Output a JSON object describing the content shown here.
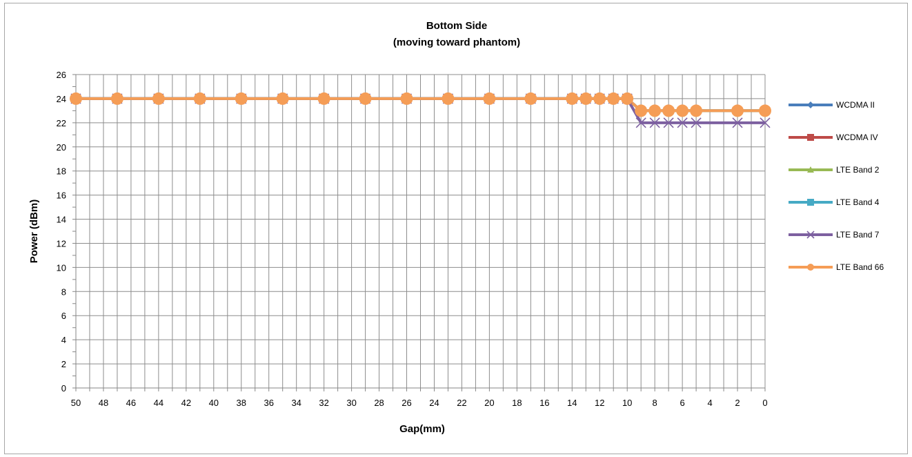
{
  "chart_data": {
    "type": "line",
    "title": "Bottom Side",
    "subtitle": "(moving toward phantom)",
    "xlabel": "Gap(mm)",
    "ylabel": "Power (dBm)",
    "x_reversed": true,
    "xlim": [
      0,
      50
    ],
    "ylim": [
      0,
      26
    ],
    "y_ticks": [
      0,
      2,
      4,
      6,
      8,
      10,
      12,
      14,
      16,
      18,
      20,
      22,
      24,
      26
    ],
    "x_ticks": [
      50,
      48,
      46,
      44,
      42,
      40,
      38,
      36,
      34,
      32,
      30,
      28,
      26,
      24,
      22,
      20,
      18,
      16,
      14,
      12,
      10,
      8,
      6,
      4,
      2,
      0
    ],
    "grid": true,
    "legend_position": "right",
    "x": [
      50,
      47,
      44,
      41,
      38,
      35,
      32,
      29,
      26,
      23,
      20,
      17,
      14,
      13,
      12,
      11,
      10,
      9,
      8,
      7,
      6,
      5,
      2,
      0
    ],
    "series": [
      {
        "name": "WCDMA II",
        "color": "#4a7ebb",
        "marker": "diamond",
        "values": [
          24,
          24,
          24,
          24,
          24,
          24,
          24,
          24,
          24,
          24,
          24,
          24,
          24,
          24,
          24,
          24,
          24,
          23,
          23,
          23,
          23,
          23,
          23,
          23
        ]
      },
      {
        "name": "WCDMA IV",
        "color": "#be4b48",
        "marker": "square",
        "values": [
          24,
          24,
          24,
          24,
          24,
          24,
          24,
          24,
          24,
          24,
          24,
          24,
          24,
          24,
          24,
          24,
          24,
          23,
          23,
          23,
          23,
          23,
          23,
          23
        ]
      },
      {
        "name": "LTE Band 2",
        "color": "#98b954",
        "marker": "triangle",
        "values": [
          24,
          24,
          24,
          24,
          24,
          24,
          24,
          24,
          24,
          24,
          24,
          24,
          24,
          24,
          24,
          24,
          24,
          23,
          23,
          23,
          23,
          23,
          23,
          23
        ]
      },
      {
        "name": "LTE Band 4",
        "color": "#46aac5",
        "marker": "square",
        "values": [
          24,
          24,
          24,
          24,
          24,
          24,
          24,
          24,
          24,
          24,
          24,
          24,
          24,
          24,
          24,
          24,
          24,
          23,
          23,
          23,
          23,
          23,
          23,
          23
        ]
      },
      {
        "name": "LTE Band 7",
        "color": "#7d60a0",
        "marker": "x",
        "values": [
          24,
          24,
          24,
          24,
          24,
          24,
          24,
          24,
          24,
          24,
          24,
          24,
          24,
          24,
          24,
          24,
          24,
          22,
          22,
          22,
          22,
          22,
          22,
          22
        ]
      },
      {
        "name": "LTE Band 66",
        "color": "#f59d56",
        "marker": "circle",
        "values": [
          24,
          24,
          24,
          24,
          24,
          24,
          24,
          24,
          24,
          24,
          24,
          24,
          24,
          24,
          24,
          24,
          24,
          23,
          23,
          23,
          23,
          23,
          23,
          23
        ]
      }
    ]
  }
}
